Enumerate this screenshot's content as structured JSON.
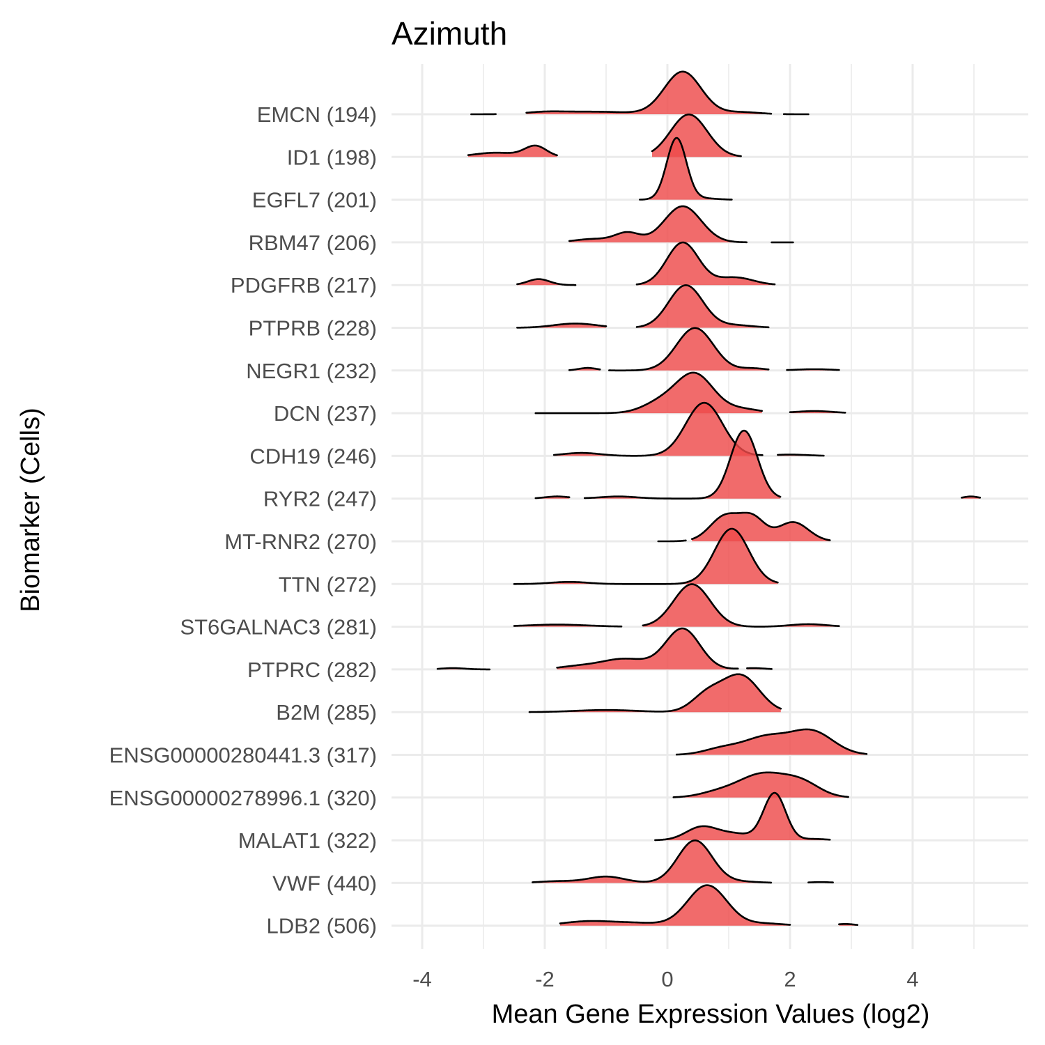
{
  "chart_data": {
    "type": "ridgeline",
    "title": "Azimuth",
    "xlabel": "Mean Gene Expression Values (log2)",
    "ylabel": "Biomarker (Cells)",
    "xlim": [
      -4.3,
      5.9
    ],
    "xticks": [
      -4,
      -2,
      0,
      2,
      4
    ],
    "x_tick_labels": [
      "-4",
      "-2",
      "0",
      "2",
      "4"
    ],
    "grid": true,
    "legend": "none",
    "fill_color": "#ee4a4a",
    "line_color": "#000000",
    "series": [
      {
        "label": "EMCN (194)",
        "x_range": [
          -3.2,
          2.3
        ],
        "peaks": [
          [
            0.25,
            1.0,
            0.3
          ],
          [
            -1.2,
            0.06,
            0.6
          ],
          [
            -2.0,
            0.04,
            0.3
          ],
          [
            1.2,
            0.05,
            0.3
          ]
        ],
        "gaps": [
          [
            -2.8,
            -2.3
          ],
          [
            1.7,
            1.9
          ]
        ]
      },
      {
        "label": "ID1 (198)",
        "x_range": [
          -3.25,
          1.2
        ],
        "peaks": [
          [
            0.35,
            1.0,
            0.3
          ],
          [
            -2.15,
            0.25,
            0.18
          ],
          [
            -2.8,
            0.1,
            0.35
          ]
        ],
        "gaps": [
          [
            -1.8,
            -0.25
          ]
        ]
      },
      {
        "label": "EGFL7 (201)",
        "x_range": [
          -0.45,
          1.05
        ],
        "peaks": [
          [
            0.15,
            1.45,
            0.16
          ],
          [
            0.6,
            0.03,
            0.2
          ]
        ],
        "gaps": []
      },
      {
        "label": "RBM47 (206)",
        "x_range": [
          -1.6,
          2.05
        ],
        "peaks": [
          [
            0.25,
            0.85,
            0.3
          ],
          [
            -0.65,
            0.22,
            0.2
          ],
          [
            -1.2,
            0.08,
            0.3
          ]
        ],
        "gaps": [
          [
            1.3,
            1.7
          ]
        ]
      },
      {
        "label": "PDGFRB (217)",
        "x_range": [
          -2.45,
          1.75
        ],
        "peaks": [
          [
            0.25,
            1.0,
            0.26
          ],
          [
            1.1,
            0.18,
            0.3
          ],
          [
            -2.1,
            0.14,
            0.18
          ]
        ],
        "gaps": [
          [
            -1.5,
            -0.5
          ]
        ]
      },
      {
        "label": "PTPRB (228)",
        "x_range": [
          -2.45,
          1.65
        ],
        "peaks": [
          [
            0.3,
            1.0,
            0.28
          ],
          [
            -1.5,
            0.1,
            0.35
          ],
          [
            1.1,
            0.06,
            0.3
          ]
        ],
        "gaps": [
          [
            -1.0,
            -0.5
          ]
        ]
      },
      {
        "label": "NEGR1 (232)",
        "x_range": [
          -1.6,
          2.8
        ],
        "peaks": [
          [
            0.45,
            1.0,
            0.3
          ],
          [
            -1.3,
            0.06,
            0.15
          ],
          [
            1.4,
            0.05,
            0.2
          ],
          [
            2.4,
            0.03,
            0.3
          ]
        ],
        "gaps": [
          [
            -1.1,
            -0.95
          ],
          [
            1.65,
            1.95
          ]
        ]
      },
      {
        "label": "DCN (237)",
        "x_range": [
          -2.15,
          2.9
        ],
        "peaks": [
          [
            0.45,
            0.9,
            0.3
          ],
          [
            -0.1,
            0.25,
            0.3
          ],
          [
            1.2,
            0.1,
            0.3
          ],
          [
            2.4,
            0.05,
            0.3
          ]
        ],
        "gaps": [
          [
            1.55,
            2.0
          ]
        ]
      },
      {
        "label": "CDH19 (246)",
        "x_range": [
          -1.85,
          2.55
        ],
        "peaks": [
          [
            0.6,
            1.25,
            0.3
          ],
          [
            -1.4,
            0.07,
            0.3
          ],
          [
            2.0,
            0.03,
            0.3
          ]
        ],
        "gaps": [
          [
            1.55,
            1.8
          ]
        ]
      },
      {
        "label": "RYR2 (247)",
        "x_range": [
          -2.15,
          5.1
        ],
        "peaks": [
          [
            1.25,
            1.6,
            0.22
          ],
          [
            -1.8,
            0.05,
            0.2
          ],
          [
            -0.8,
            0.05,
            0.3
          ],
          [
            4.95,
            0.05,
            0.12
          ]
        ],
        "gaps": [
          [
            -1.6,
            -1.35
          ],
          [
            1.85,
            4.8
          ]
        ]
      },
      {
        "label": "MT-RNR2 (270)",
        "x_range": [
          -0.15,
          2.65
        ],
        "peaks": [
          [
            0.95,
            0.6,
            0.25
          ],
          [
            1.4,
            0.5,
            0.2
          ],
          [
            2.05,
            0.45,
            0.25
          ]
        ],
        "gaps": [
          [
            0.3,
            0.4
          ]
        ]
      },
      {
        "label": "TTN (272)",
        "x_range": [
          -2.5,
          1.8
        ],
        "peaks": [
          [
            1.05,
            1.3,
            0.28
          ],
          [
            -1.6,
            0.05,
            0.3
          ]
        ],
        "gaps": []
      },
      {
        "label": "ST6GALNAC3 (281)",
        "x_range": [
          -2.5,
          2.8
        ],
        "peaks": [
          [
            0.4,
            1.0,
            0.3
          ],
          [
            -1.8,
            0.05,
            0.5
          ],
          [
            2.3,
            0.06,
            0.3
          ]
        ],
        "gaps": [
          [
            -0.75,
            -0.4
          ]
        ]
      },
      {
        "label": "PTPRC (282)",
        "x_range": [
          -3.75,
          1.7
        ],
        "peaks": [
          [
            0.25,
            0.95,
            0.28
          ],
          [
            -0.7,
            0.25,
            0.4
          ],
          [
            -1.5,
            0.06,
            0.3
          ],
          [
            -3.5,
            0.03,
            0.2
          ],
          [
            1.4,
            0.03,
            0.2
          ]
        ],
        "gaps": [
          [
            -2.9,
            -1.8
          ],
          [
            1.15,
            1.3
          ]
        ]
      },
      {
        "label": "B2M (285)",
        "x_range": [
          -2.25,
          1.85
        ],
        "peaks": [
          [
            1.2,
            0.85,
            0.3
          ],
          [
            0.65,
            0.4,
            0.25
          ],
          [
            -1.0,
            0.05,
            0.5
          ]
        ],
        "gaps": []
      },
      {
        "label": "ENSG00000280441.3 (317)",
        "x_range": [
          0.15,
          3.25
        ],
        "peaks": [
          [
            2.35,
            0.55,
            0.35
          ],
          [
            1.6,
            0.4,
            0.35
          ],
          [
            0.9,
            0.15,
            0.3
          ]
        ],
        "gaps": []
      },
      {
        "label": "ENSG00000278996.1 (320)",
        "x_range": [
          0.1,
          2.95
        ],
        "peaks": [
          [
            1.55,
            0.55,
            0.4
          ],
          [
            2.2,
            0.3,
            0.3
          ],
          [
            0.8,
            0.1,
            0.3
          ]
        ],
        "gaps": []
      },
      {
        "label": "MALAT1 (322)",
        "x_range": [
          -0.2,
          2.65
        ],
        "peaks": [
          [
            1.75,
            1.1,
            0.18
          ],
          [
            0.55,
            0.3,
            0.25
          ],
          [
            1.1,
            0.15,
            0.3
          ],
          [
            2.4,
            0.03,
            0.2
          ]
        ],
        "gaps": []
      },
      {
        "label": "VWF (440)",
        "x_range": [
          -2.2,
          2.7
        ],
        "peaks": [
          [
            0.45,
            1.0,
            0.28
          ],
          [
            -1.0,
            0.15,
            0.3
          ],
          [
            -1.8,
            0.04,
            0.3
          ],
          [
            1.2,
            0.03,
            0.3
          ],
          [
            2.5,
            0.02,
            0.2
          ]
        ],
        "gaps": [
          [
            1.7,
            2.3
          ]
        ]
      },
      {
        "label": "LDB2 (506)",
        "x_range": [
          -1.75,
          3.1
        ],
        "peaks": [
          [
            0.65,
            0.95,
            0.32
          ],
          [
            -1.3,
            0.1,
            0.4
          ],
          [
            -0.5,
            0.06,
            0.4
          ],
          [
            1.6,
            0.05,
            0.3
          ],
          [
            2.9,
            0.04,
            0.15
          ]
        ],
        "gaps": [
          [
            2.0,
            2.8
          ]
        ]
      }
    ]
  }
}
